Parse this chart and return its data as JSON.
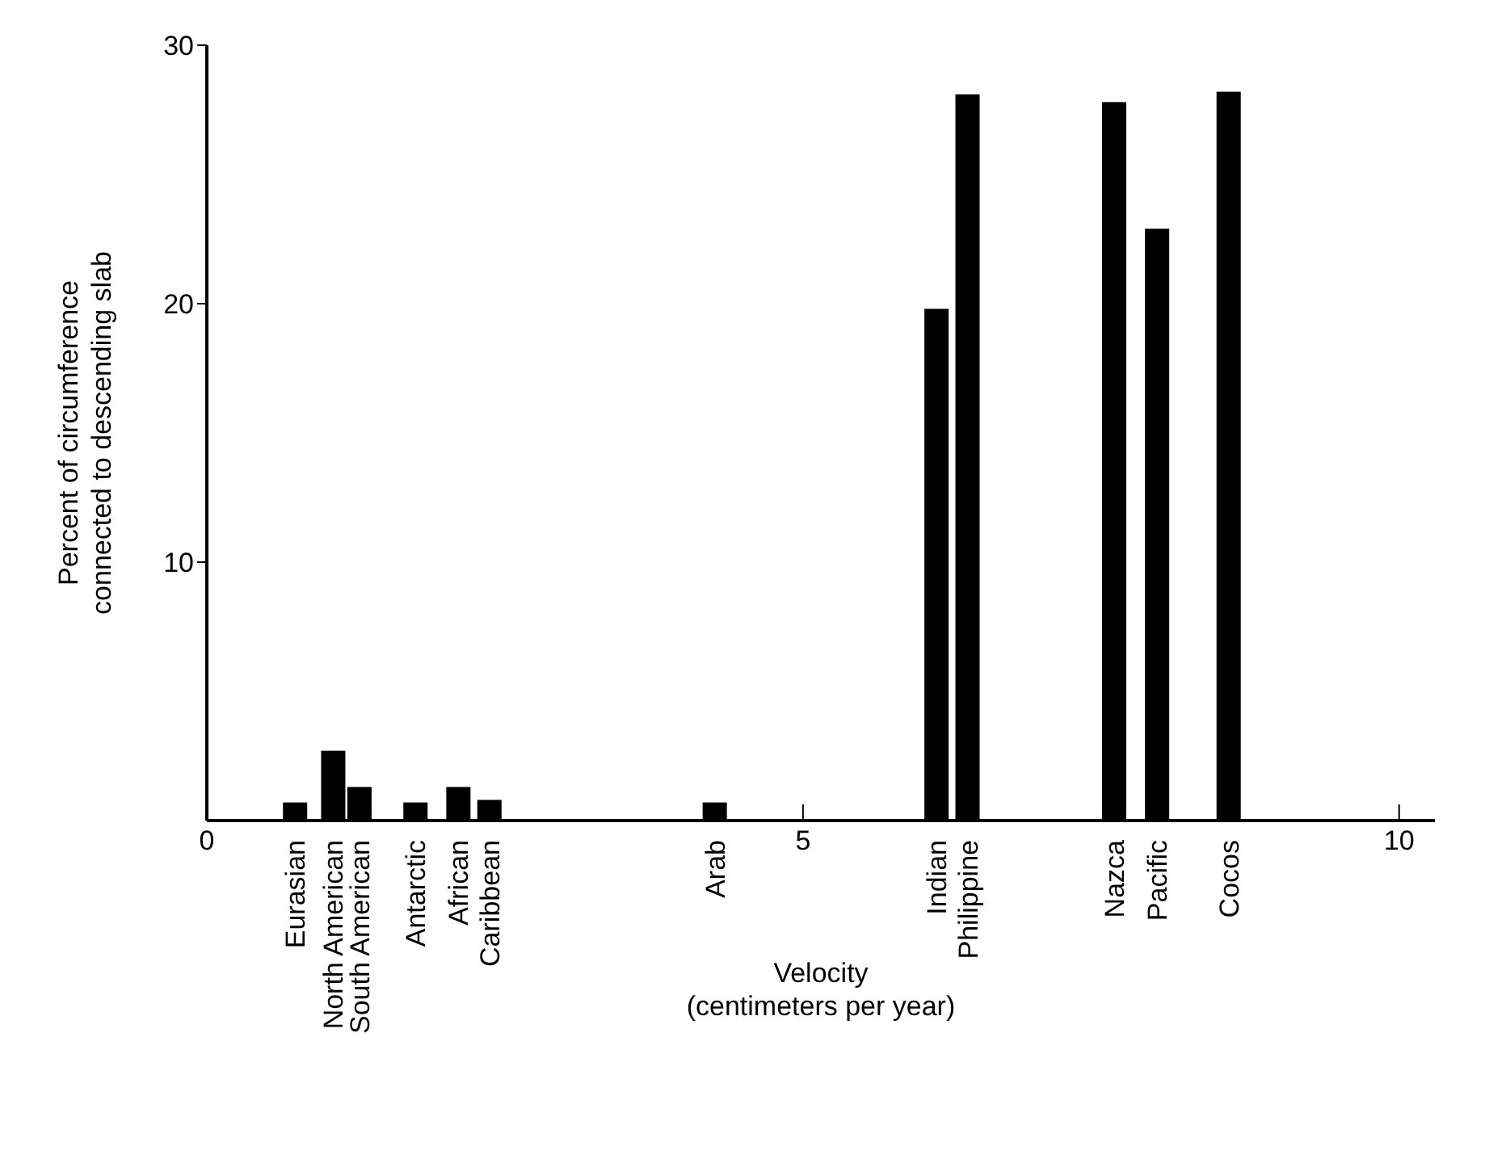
{
  "chart_data": {
    "type": "bar",
    "xlabel": "Velocity\n(centimeters per year)",
    "ylabel": "Percent of circumference\nconnected to descending slab",
    "x": [
      0.74,
      1.06,
      1.28,
      1.75,
      2.11,
      2.37,
      4.26,
      6.12,
      6.38,
      7.61,
      7.97,
      8.57
    ],
    "series": [
      {
        "color": "#000000",
        "values": [
          0.7,
          2.7,
          1.3,
          0.7,
          1.3,
          0.8,
          0.7,
          19.8,
          28.1,
          27.8,
          22.9,
          28.2
        ]
      }
    ],
    "xlim": [
      0,
      10.3
    ],
    "xticks": [
      0,
      5,
      10
    ],
    "ylim": [
      0,
      30
    ],
    "yticks": [
      10,
      20,
      30
    ],
    "grid": false,
    "legend": false,
    "annotations": [
      {
        "text": "Eurasian",
        "x": 0.74,
        "y": 0
      },
      {
        "text": "North American",
        "x": 1.06,
        "y": 0
      },
      {
        "text": "South American",
        "x": 1.28,
        "y": 0
      },
      {
        "text": "Antarctic",
        "x": 1.75,
        "y": 0
      },
      {
        "text": "African",
        "x": 2.11,
        "y": 0
      },
      {
        "text": "Caribbean",
        "x": 2.37,
        "y": 0
      },
      {
        "text": "Arab",
        "x": 4.26,
        "y": 0
      },
      {
        "text": "Indian",
        "x": 6.12,
        "y": 0
      },
      {
        "text": "Philippine",
        "x": 6.38,
        "y": 0
      },
      {
        "text": "Nazca",
        "x": 7.61,
        "y": 0
      },
      {
        "text": "Pacific",
        "x": 7.97,
        "y": 0
      },
      {
        "text": "Cocos",
        "x": 8.57,
        "y": 0
      }
    ]
  }
}
